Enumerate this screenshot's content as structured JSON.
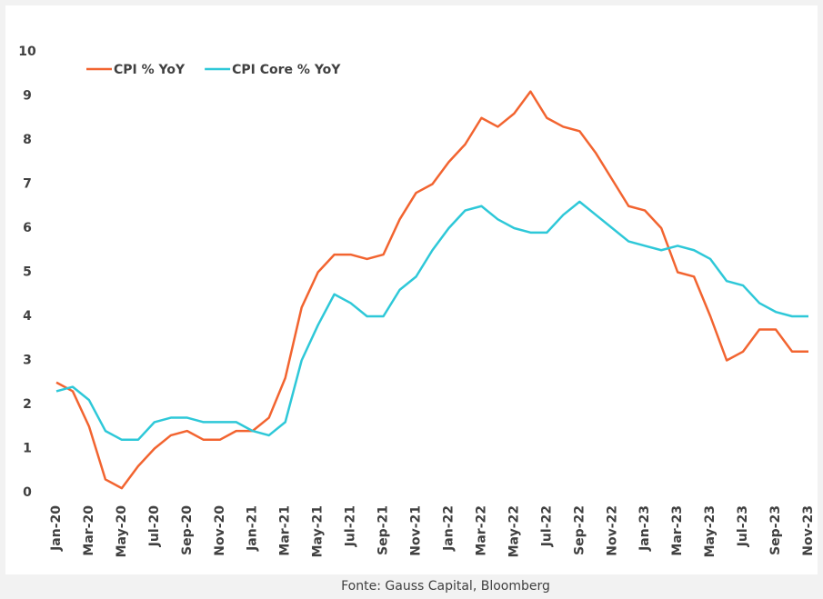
{
  "chart_data": {
    "type": "line",
    "categories": [
      "Jan-20",
      null,
      "Mar-20",
      null,
      "May-20",
      null,
      "Jul-20",
      null,
      "Sep-20",
      null,
      "Nov-20",
      null,
      "Jan-21",
      null,
      "Mar-21",
      null,
      "May-21",
      null,
      "Jul-21",
      null,
      "Sep-21",
      null,
      "Nov-21",
      null,
      "Jan-22",
      null,
      "Mar-22",
      null,
      "May-22",
      null,
      "Jul-22",
      null,
      "Sep-22",
      null,
      "Nov-22",
      null,
      "Jan-23",
      null,
      "Mar-23",
      null,
      "May-23",
      null,
      "Jul-23",
      null,
      "Sep-23",
      null,
      "Nov-23"
    ],
    "series": [
      {
        "name": "CPI % YoY",
        "color": "#f26430",
        "values": [
          2.5,
          2.3,
          1.5,
          0.3,
          0.1,
          0.6,
          1.0,
          1.3,
          1.4,
          1.2,
          1.2,
          1.4,
          1.4,
          1.7,
          2.6,
          4.2,
          5.0,
          5.4,
          5.4,
          5.3,
          5.4,
          6.2,
          6.8,
          7.0,
          7.5,
          7.9,
          8.5,
          8.3,
          8.6,
          9.1,
          8.5,
          8.3,
          8.2,
          7.7,
          7.1,
          6.5,
          6.4,
          6.0,
          5.0,
          4.9,
          4.0,
          3.0,
          3.2,
          3.7,
          3.7,
          3.2,
          3.2
        ]
      },
      {
        "name": "CPI Core % YoY",
        "color": "#2ec8d8",
        "values": [
          2.3,
          2.4,
          2.1,
          1.4,
          1.2,
          1.2,
          1.6,
          1.7,
          1.7,
          1.6,
          1.6,
          1.6,
          1.4,
          1.3,
          1.6,
          3.0,
          3.8,
          4.5,
          4.3,
          4.0,
          4.0,
          4.6,
          4.9,
          5.5,
          6.0,
          6.4,
          6.5,
          6.2,
          6.0,
          5.9,
          5.9,
          6.3,
          6.6,
          6.3,
          6.0,
          5.7,
          5.6,
          5.5,
          5.6,
          5.5,
          5.3,
          4.8,
          4.7,
          4.3,
          4.1,
          4.0,
          4.0
        ]
      }
    ],
    "ylim": [
      0,
      10
    ],
    "yticks": [
      0,
      1,
      2,
      3,
      4,
      5,
      6,
      7,
      8,
      9,
      10
    ],
    "grid": false,
    "legend": "top-left",
    "source": "Fonte: Gauss Capital, Bloomberg"
  }
}
